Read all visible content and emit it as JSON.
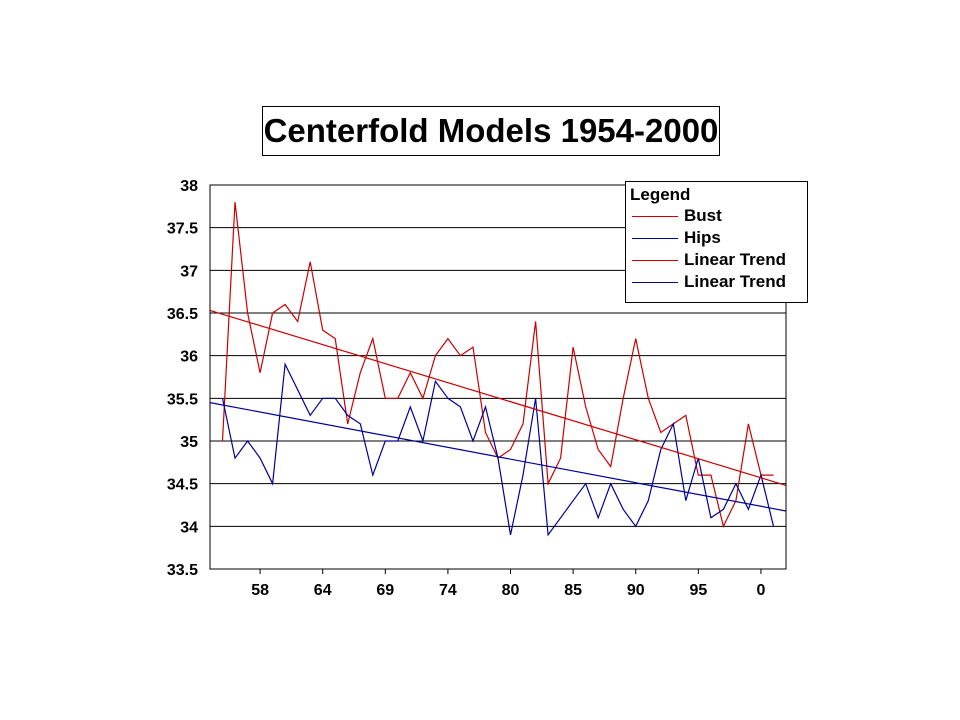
{
  "chart_data": {
    "type": "line",
    "title": "Centerfold Models 1954-2000",
    "ylim": [
      33.5,
      38
    ],
    "yticks": [
      "33.5",
      "34",
      "34.5",
      "35",
      "35.5",
      "36",
      "36.5",
      "37",
      "37.5",
      "38"
    ],
    "xticks": [
      {
        "label": "58",
        "x": 1958
      },
      {
        "label": "64",
        "x": 1963
      },
      {
        "label": "69",
        "x": 1968
      },
      {
        "label": "74",
        "x": 1973
      },
      {
        "label": "80",
        "x": 1978
      },
      {
        "label": "85",
        "x": 1983
      },
      {
        "label": "90",
        "x": 1988
      },
      {
        "label": "95",
        "x": 1993
      },
      {
        "label": "0",
        "x": 1998
      }
    ],
    "xlim": [
      1954,
      2000
    ],
    "grid": true,
    "legend_position": "top-right",
    "legend": {
      "title": "Legend",
      "entries": [
        {
          "label": "Bust",
          "color": "#cc0000"
        },
        {
          "label": "Hips",
          "color": "#000099"
        },
        {
          "label": "Linear Trend",
          "color": "#cc0000"
        },
        {
          "label": "Linear Trend",
          "color": "#000099"
        }
      ]
    },
    "x": [
      1955,
      1956,
      1957,
      1958,
      1959,
      1960,
      1961,
      1962,
      1963,
      1964,
      1965,
      1966,
      1967,
      1968,
      1969,
      1970,
      1971,
      1972,
      1973,
      1974,
      1975,
      1976,
      1977,
      1978,
      1979,
      1980,
      1981,
      1982,
      1983,
      1984,
      1985,
      1986,
      1987,
      1988,
      1989,
      1990,
      1991,
      1992,
      1993,
      1994,
      1995,
      1996,
      1997,
      1998,
      1999
    ],
    "series": [
      {
        "name": "Bust",
        "color": "#cc0000",
        "values": [
          35.0,
          37.8,
          36.5,
          35.8,
          36.5,
          36.6,
          36.4,
          37.1,
          36.3,
          36.2,
          35.2,
          35.8,
          36.2,
          35.5,
          35.5,
          35.8,
          35.5,
          36.0,
          36.2,
          36.0,
          36.1,
          35.1,
          34.8,
          34.9,
          35.2,
          36.4,
          34.5,
          34.8,
          36.1,
          35.4,
          34.9,
          34.7,
          35.5,
          36.2,
          35.5,
          35.1,
          35.2,
          35.3,
          34.6,
          34.6,
          34.0,
          34.3,
          35.2,
          34.6,
          34.6
        ]
      },
      {
        "name": "Hips",
        "color": "#000099",
        "values": [
          35.5,
          34.8,
          35.0,
          34.8,
          34.5,
          35.9,
          35.6,
          35.3,
          35.5,
          35.5,
          35.3,
          35.2,
          34.6,
          35.0,
          35.0,
          35.4,
          35.0,
          35.7,
          35.5,
          35.4,
          35.0,
          35.4,
          34.8,
          33.9,
          34.6,
          35.5,
          33.9,
          34.1,
          34.3,
          34.5,
          34.1,
          34.5,
          34.2,
          34.0,
          34.3,
          34.9,
          35.2,
          34.3,
          34.8,
          34.1,
          34.2,
          34.5,
          34.2,
          34.6,
          34.0
        ]
      },
      {
        "name": "Linear Trend",
        "color": "#cc0000",
        "x": [
          1954,
          2000
        ],
        "values": [
          36.53,
          34.48
        ]
      },
      {
        "name": "Linear Trend",
        "color": "#000099",
        "x": [
          1954,
          2000
        ],
        "values": [
          35.45,
          34.18
        ]
      }
    ]
  }
}
